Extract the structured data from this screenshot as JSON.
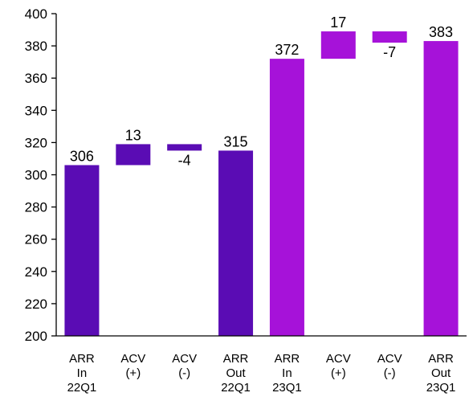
{
  "chart_data": {
    "type": "bar",
    "subtype": "waterfall",
    "title": "",
    "xlabel": "",
    "ylabel": "",
    "ylim": [
      200,
      400
    ],
    "yticks": [
      200,
      220,
      240,
      260,
      280,
      300,
      320,
      340,
      360,
      380,
      400
    ],
    "grid": false,
    "legend": "none",
    "categories": [
      [
        "ARR",
        "In",
        "22Q1"
      ],
      [
        "ACV",
        "(+)"
      ],
      [
        "ACV",
        "(-)"
      ],
      [
        "ARR",
        "Out",
        "22Q1"
      ],
      [
        "ARR",
        "In",
        "23Q1"
      ],
      [
        "ACV",
        "(+)"
      ],
      [
        "ACV",
        "(-)"
      ],
      [
        "ARR",
        "Out",
        "23Q1"
      ]
    ],
    "bars": [
      {
        "kind": "total",
        "value": 306,
        "label": "306",
        "color": "#5A0CB4"
      },
      {
        "kind": "delta",
        "start": 306,
        "end": 319,
        "label": "13",
        "color": "#5A0CB4"
      },
      {
        "kind": "delta",
        "start": 319,
        "end": 315,
        "label": "-4",
        "color": "#5A0CB4"
      },
      {
        "kind": "total",
        "value": 315,
        "label": "315",
        "color": "#5A0CB4"
      },
      {
        "kind": "total",
        "value": 372,
        "label": "372",
        "color": "#A612D9"
      },
      {
        "kind": "delta",
        "start": 372,
        "end": 389,
        "label": "17",
        "color": "#A612D9"
      },
      {
        "kind": "delta",
        "start": 389,
        "end": 382,
        "label": "-7",
        "color": "#A612D9"
      },
      {
        "kind": "total",
        "value": 383,
        "label": "383",
        "color": "#A612D9"
      }
    ],
    "colors": {
      "series_2022": "#5A0CB4",
      "series_2023": "#A612D9",
      "axis": "#000000"
    }
  }
}
